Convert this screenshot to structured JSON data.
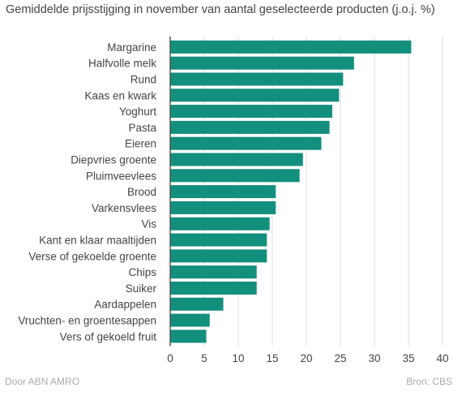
{
  "title": "Gemiddelde prijsstijging in november van aantal geselecteerde producten (j.o.j. %)",
  "footer": {
    "left": "Door ABN AMRO",
    "right": "Bron: CBS"
  },
  "colors": {
    "bar": "#138f7d",
    "grid": "#dddddd",
    "axis": "#555555"
  },
  "chart_data": {
    "type": "bar",
    "orientation": "horizontal",
    "title": "Gemiddelde prijsstijging in november van aantal geselecteerde producten (j.o.j. %)",
    "categories": [
      "Margarine",
      "Halfvolle melk",
      "Rund",
      "Kaas en kwark",
      "Yoghurt",
      "Pasta",
      "Eieren",
      "Diepvries groente",
      "Pluimveevlees",
      "Brood",
      "Varkensvlees",
      "Vis",
      "Kant en klaar maaltijden",
      "Verse of gekoelde groente",
      "Chips",
      "Suiker",
      "Aardappelen",
      "Vruchten- en groentesappen",
      "Vers of gekoeld fruit"
    ],
    "values": [
      35.4,
      27.0,
      25.4,
      24.8,
      23.8,
      23.4,
      22.2,
      19.5,
      19.0,
      15.5,
      15.5,
      14.6,
      14.2,
      14.2,
      12.7,
      12.7,
      7.8,
      5.8,
      5.3
    ],
    "xlim": [
      0,
      40
    ],
    "xticks": [
      "0",
      "5",
      "10",
      "15",
      "20",
      "25",
      "30",
      "35",
      "40"
    ],
    "grid": true
  }
}
